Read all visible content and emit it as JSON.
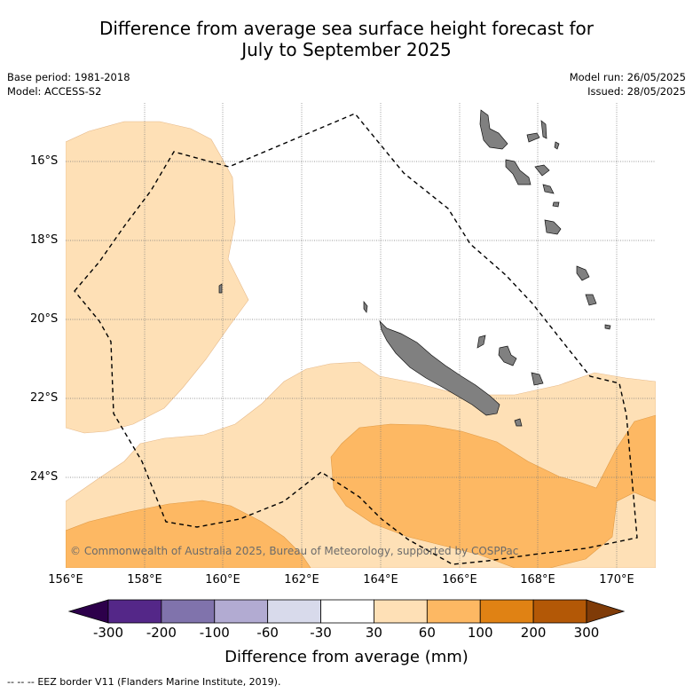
{
  "title": {
    "line1": "Difference from average sea surface height forecast for",
    "line2": "July to September 2025"
  },
  "meta_left": {
    "base_period": "Base period: 1981-2018",
    "model": "Model: ACCESS-S2"
  },
  "meta_right": {
    "model_run": "Model run: 26/05/2025",
    "issued": "Issued: 28/05/2025"
  },
  "map": {
    "lat_labels": [
      "16°S",
      "18°S",
      "20°S",
      "22°S",
      "24°S"
    ],
    "lon_labels": [
      "156°E",
      "158°E",
      "160°E",
      "162°E",
      "164°E",
      "166°E",
      "168°E",
      "170°E"
    ],
    "copyright": "© Commonwealth of Australia 2025, Bureau of Meteorology, supported by COSPPac",
    "land_color": "#808080",
    "eez_line_style": "dashed",
    "gridlines": true
  },
  "colorbar": {
    "ticks": [
      "-300",
      "-200",
      "-100",
      "-60",
      "-30",
      "30",
      "60",
      "100",
      "200",
      "300"
    ],
    "colors": [
      "#542788",
      "#8073ac",
      "#b2abd2",
      "#d8daeb",
      "#ffffff",
      "#fee0b6",
      "#fdb863",
      "#e08214",
      "#b35806"
    ],
    "under_color": "#2d004b",
    "over_color": "#7f3b08",
    "label": "Difference from average (mm)"
  },
  "legend": {
    "eez_symbol": "-- -- --",
    "eez_text": "EEZ border V11 (Flanders Marine Institute, 2019)."
  }
}
